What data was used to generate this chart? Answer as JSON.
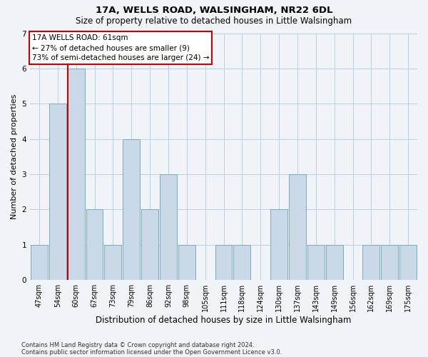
{
  "title_line1": "17A, WELLS ROAD, WALSINGHAM, NR22 6DL",
  "title_line2": "Size of property relative to detached houses in Little Walsingham",
  "xlabel": "Distribution of detached houses by size in Little Walsingham",
  "ylabel": "Number of detached properties",
  "footnote1": "Contains HM Land Registry data © Crown copyright and database right 2024.",
  "footnote2": "Contains public sector information licensed under the Open Government Licence v3.0.",
  "categories": [
    "47sqm",
    "54sqm",
    "60sqm",
    "67sqm",
    "73sqm",
    "79sqm",
    "86sqm",
    "92sqm",
    "98sqm",
    "105sqm",
    "111sqm",
    "118sqm",
    "124sqm",
    "130sqm",
    "137sqm",
    "143sqm",
    "149sqm",
    "156sqm",
    "162sqm",
    "169sqm",
    "175sqm"
  ],
  "values": [
    1,
    5,
    6,
    2,
    1,
    4,
    2,
    3,
    1,
    0,
    1,
    1,
    0,
    2,
    3,
    1,
    1,
    0,
    1,
    1,
    1
  ],
  "bar_color": "#c9d9e8",
  "bar_edge_color": "#7aaabf",
  "highlight_bar_index": 2,
  "highlight_line_color": "#cc0000",
  "annotation_box_text": "17A WELLS ROAD: 61sqm\n← 27% of detached houses are smaller (9)\n73% of semi-detached houses are larger (24) →",
  "annotation_box_color": "#cc0000",
  "ylim": [
    0,
    7
  ],
  "yticks": [
    0,
    1,
    2,
    3,
    4,
    5,
    6,
    7
  ],
  "background_color": "#f0f4f8",
  "grid_color": "#b8cfe0",
  "title1_fontsize": 9.5,
  "title2_fontsize": 8.5,
  "ylabel_fontsize": 8,
  "xlabel_fontsize": 8.5,
  "tick_fontsize": 7,
  "footnote_fontsize": 6,
  "annot_fontsize": 7.5
}
